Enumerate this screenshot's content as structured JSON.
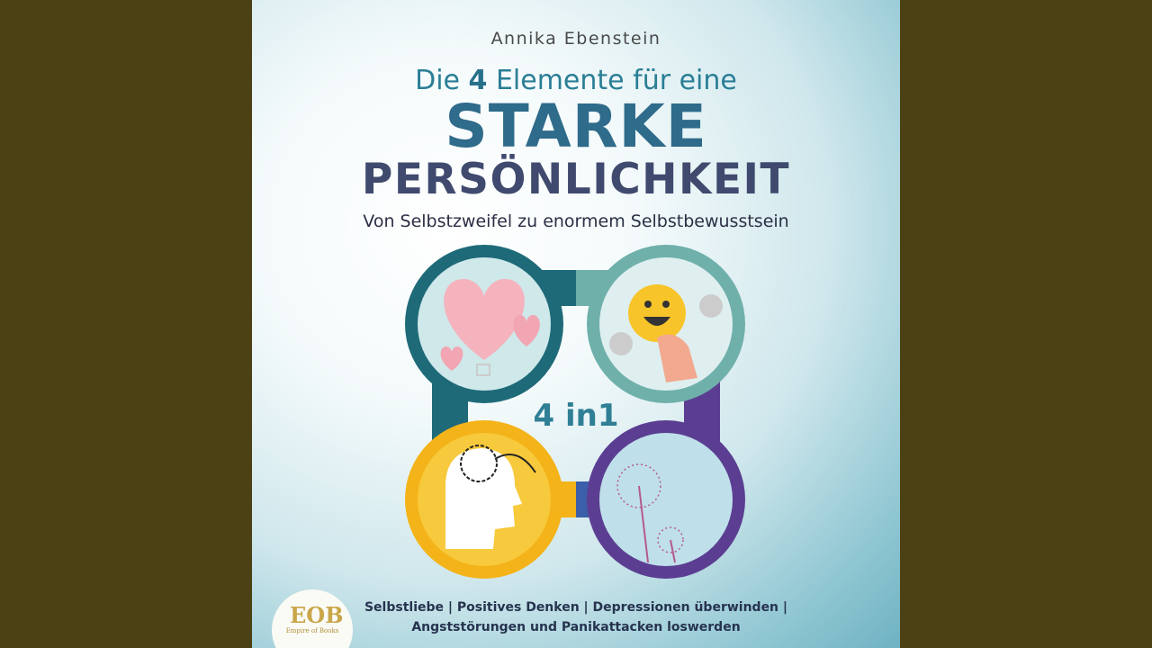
{
  "cover": {
    "author": "Annika Ebenstein",
    "title_line1_pre": "Die ",
    "title_line1_num": "4",
    "title_line1_post": " Elemente für eine",
    "title_line2": "STARKE",
    "title_line3": "PERSÖNLICHKEIT",
    "subtitle": "Von Selbstzweifel zu enormem Selbstbewusstsein",
    "badge": "4 in1",
    "tags_line1": "Selbstliebe | Positives Denken | Depressionen überwinden |",
    "tags_line2": "Angststörungen und Panikattacken loswerden",
    "publisher": "Empire of Books",
    "publisher_mark": "EOB"
  },
  "colors": {
    "frame": "#4b4115",
    "ring_teal_dark": "#1e6a78",
    "ring_teal_light": "#6fb0ab",
    "ring_yellow": "#f4b318",
    "ring_purple": "#5b3e92"
  }
}
